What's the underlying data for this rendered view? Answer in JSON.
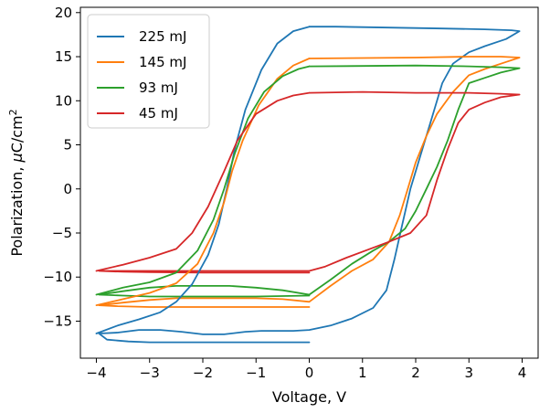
{
  "chart_data": {
    "type": "line",
    "title": "",
    "xlabel": "Voltage, V",
    "ylabel_prefix": "Polarization, ",
    "ylabel_mu": "μ",
    "ylabel_unit": "C/cm",
    "ylabel_exp": "2",
    "xlim": [
      -4.3,
      4.3
    ],
    "ylim": [
      -19.2,
      20.6
    ],
    "xticks": [
      -4,
      -3,
      -2,
      -1,
      0,
      1,
      2,
      3,
      4
    ],
    "yticks": [
      -15,
      -10,
      -5,
      0,
      5,
      10,
      15,
      20
    ],
    "xtick_labels": [
      "−4",
      "−3",
      "−2",
      "−1",
      "0",
      "1",
      "2",
      "3",
      "4"
    ],
    "ytick_labels": [
      "−15",
      "−10",
      "−5",
      "0",
      "5",
      "10",
      "15",
      "20"
    ],
    "grid": false,
    "legend_position": "top-left",
    "series": [
      {
        "name": "225 mJ",
        "color": "#1f77b4",
        "points": [
          [
            0,
            18.4
          ],
          [
            0.5,
            18.4
          ],
          [
            1.5,
            18.3
          ],
          [
            2.5,
            18.2
          ],
          [
            3.3,
            18.1
          ],
          [
            3.8,
            18.0
          ],
          [
            3.95,
            17.9
          ],
          [
            3.7,
            17.0
          ],
          [
            3.3,
            16.2
          ],
          [
            3.0,
            15.5
          ],
          [
            2.7,
            14.2
          ],
          [
            2.5,
            12.0
          ],
          [
            2.3,
            8.0
          ],
          [
            2.1,
            4.0
          ],
          [
            1.9,
            0
          ],
          [
            1.75,
            -4.0
          ],
          [
            1.6,
            -8.0
          ],
          [
            1.45,
            -11.5
          ],
          [
            1.2,
            -13.5
          ],
          [
            0.8,
            -14.7
          ],
          [
            0.4,
            -15.5
          ],
          [
            0,
            -16.0
          ],
          [
            -0.3,
            -16.1
          ],
          [
            -0.6,
            -16.1
          ],
          [
            -0.9,
            -16.1
          ],
          [
            -1.2,
            -16.2
          ],
          [
            -1.6,
            -16.5
          ],
          [
            -2.0,
            -16.5
          ],
          [
            -2.4,
            -16.2
          ],
          [
            -2.8,
            -16.0
          ],
          [
            -3.2,
            -16.0
          ],
          [
            -3.6,
            -16.3
          ],
          [
            -3.95,
            -16.4
          ],
          [
            -3.8,
            -17.1
          ],
          [
            -3.4,
            -17.3
          ],
          [
            -3.0,
            -17.4
          ],
          [
            -2.5,
            -17.4
          ],
          [
            -2.0,
            -17.4
          ],
          [
            -1.0,
            -17.4
          ],
          [
            0,
            -17.4
          ]
        ]
      },
      {
        "name": "145 mJ",
        "color": "#ff7f0e",
        "points": [
          [
            0,
            14.8
          ],
          [
            1,
            14.85
          ],
          [
            2,
            14.9
          ],
          [
            3,
            15.0
          ],
          [
            3.6,
            15.0
          ],
          [
            3.95,
            14.9
          ],
          [
            3.7,
            14.4
          ],
          [
            3.3,
            13.6
          ],
          [
            3.0,
            12.9
          ],
          [
            2.7,
            11.0
          ],
          [
            2.4,
            8.5
          ],
          [
            2.2,
            6.0
          ],
          [
            2.0,
            3.0
          ],
          [
            1.85,
            0
          ],
          [
            1.7,
            -3.0
          ],
          [
            1.5,
            -6.0
          ],
          [
            1.2,
            -8.0
          ],
          [
            0.8,
            -9.3
          ],
          [
            0.4,
            -11.0
          ],
          [
            0,
            -12.8
          ],
          [
            -0.5,
            -12.5
          ],
          [
            -1.0,
            -12.4
          ],
          [
            -1.5,
            -12.4
          ],
          [
            -2.0,
            -12.4
          ],
          [
            -2.5,
            -12.4
          ],
          [
            -3.0,
            -12.6
          ],
          [
            -3.5,
            -12.9
          ],
          [
            -3.95,
            -13.2
          ],
          [
            -3.6,
            -13.3
          ],
          [
            -3.0,
            -13.4
          ],
          [
            -2.0,
            -13.4
          ],
          [
            -1.0,
            -13.4
          ],
          [
            0,
            -13.4
          ]
        ]
      },
      {
        "name": "93 mJ",
        "color": "#2ca02c",
        "points": [
          [
            0,
            13.9
          ],
          [
            1,
            13.95
          ],
          [
            2,
            14.0
          ],
          [
            3,
            13.9
          ],
          [
            3.6,
            13.8
          ],
          [
            3.95,
            13.7
          ],
          [
            3.6,
            13.2
          ],
          [
            3.3,
            12.6
          ],
          [
            3.0,
            12.0
          ],
          [
            2.8,
            9.0
          ],
          [
            2.6,
            5.5
          ],
          [
            2.4,
            2.5
          ],
          [
            2.2,
            0
          ],
          [
            2.0,
            -2.5
          ],
          [
            1.8,
            -4.5
          ],
          [
            1.5,
            -6.0
          ],
          [
            1.2,
            -7.0
          ],
          [
            0.8,
            -8.5
          ],
          [
            0.4,
            -10.3
          ],
          [
            0,
            -12.0
          ],
          [
            -0.5,
            -11.5
          ],
          [
            -1.0,
            -11.2
          ],
          [
            -1.5,
            -11.0
          ],
          [
            -2.0,
            -11.0
          ],
          [
            -2.5,
            -11.0
          ],
          [
            -3.0,
            -11.2
          ],
          [
            -3.5,
            -11.6
          ],
          [
            -3.95,
            -12.0
          ],
          [
            -3.5,
            -12.1
          ],
          [
            -3.0,
            -12.2
          ],
          [
            -2.0,
            -12.2
          ],
          [
            -1.0,
            -12.2
          ],
          [
            0,
            -12.1
          ]
        ]
      },
      {
        "name": "45 mJ",
        "color": "#d62728",
        "points": [
          [
            0,
            10.9
          ],
          [
            1,
            11.0
          ],
          [
            2,
            10.9
          ],
          [
            3,
            10.9
          ],
          [
            3.6,
            10.8
          ],
          [
            3.95,
            10.7
          ],
          [
            3.6,
            10.4
          ],
          [
            3.3,
            9.8
          ],
          [
            3.0,
            9.0
          ],
          [
            2.8,
            7.5
          ],
          [
            2.6,
            4.5
          ],
          [
            2.4,
            1.0
          ],
          [
            2.2,
            -3.0
          ],
          [
            1.9,
            -5.0
          ],
          [
            1.5,
            -6.0
          ],
          [
            1.1,
            -6.9
          ],
          [
            0.7,
            -7.8
          ],
          [
            0.3,
            -8.8
          ],
          [
            0,
            -9.3
          ],
          [
            -0.5,
            -9.3
          ],
          [
            -1.0,
            -9.3
          ],
          [
            -1.5,
            -9.3
          ],
          [
            -2.0,
            -9.3
          ],
          [
            -2.5,
            -9.3
          ],
          [
            -3.0,
            -9.3
          ],
          [
            -3.5,
            -9.3
          ],
          [
            -3.95,
            -9.3
          ],
          [
            -3.5,
            -9.4
          ],
          [
            -3.0,
            -9.45
          ],
          [
            -2.0,
            -9.5
          ],
          [
            -1.0,
            -9.5
          ],
          [
            0,
            -9.5
          ]
        ]
      },
      {
        "name": "",
        "color": "#1f77b4",
        "points": [
          [
            -4.0,
            -16.4
          ],
          [
            -3.6,
            -15.5
          ],
          [
            -3.2,
            -14.8
          ],
          [
            -2.8,
            -14.0
          ],
          [
            -2.5,
            -12.8
          ],
          [
            -2.2,
            -10.8
          ],
          [
            -1.9,
            -7.5
          ],
          [
            -1.7,
            -4.0
          ],
          [
            -1.55,
            0
          ],
          [
            -1.4,
            4.5
          ],
          [
            -1.2,
            9.0
          ],
          [
            -0.9,
            13.5
          ],
          [
            -0.6,
            16.5
          ],
          [
            -0.3,
            17.9
          ],
          [
            0,
            18.4
          ]
        ]
      },
      {
        "name": "",
        "color": "#ff7f0e",
        "points": [
          [
            -4.0,
            -13.2
          ],
          [
            -3.5,
            -12.5
          ],
          [
            -3.0,
            -11.8
          ],
          [
            -2.5,
            -10.7
          ],
          [
            -2.1,
            -8.5
          ],
          [
            -1.8,
            -5.0
          ],
          [
            -1.6,
            -1.5
          ],
          [
            -1.45,
            2.0
          ],
          [
            -1.25,
            5.5
          ],
          [
            -0.95,
            9.5
          ],
          [
            -0.6,
            12.5
          ],
          [
            -0.3,
            14.0
          ],
          [
            0,
            14.8
          ]
        ]
      },
      {
        "name": "",
        "color": "#2ca02c",
        "points": [
          [
            -4.0,
            -12.0
          ],
          [
            -3.5,
            -11.2
          ],
          [
            -3.0,
            -10.6
          ],
          [
            -2.5,
            -9.5
          ],
          [
            -2.1,
            -7.0
          ],
          [
            -1.8,
            -3.5
          ],
          [
            -1.6,
            0
          ],
          [
            -1.4,
            4.0
          ],
          [
            -1.15,
            8.0
          ],
          [
            -0.85,
            11.0
          ],
          [
            -0.5,
            12.8
          ],
          [
            -0.2,
            13.6
          ],
          [
            0,
            13.9
          ]
        ]
      },
      {
        "name": "",
        "color": "#d62728",
        "points": [
          [
            -4.0,
            -9.3
          ],
          [
            -3.5,
            -8.6
          ],
          [
            -3.0,
            -7.8
          ],
          [
            -2.5,
            -6.8
          ],
          [
            -2.2,
            -5.0
          ],
          [
            -1.9,
            -2.0
          ],
          [
            -1.6,
            2.0
          ],
          [
            -1.35,
            5.5
          ],
          [
            -1.0,
            8.5
          ],
          [
            -0.6,
            10.0
          ],
          [
            -0.3,
            10.6
          ],
          [
            0,
            10.9
          ]
        ]
      }
    ]
  }
}
